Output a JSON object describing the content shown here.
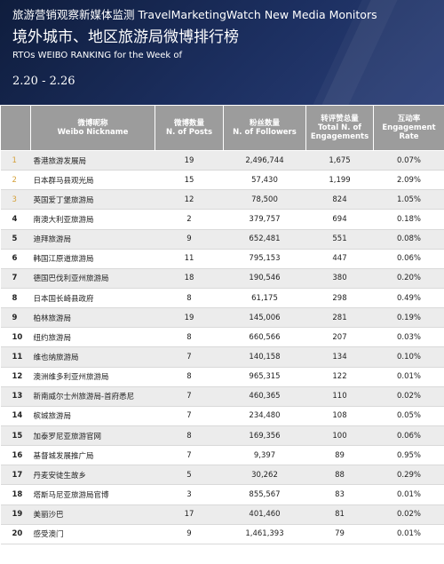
{
  "header": {
    "top_line": "旅游营销观察新媒体监测 TravelMarketingWatch New Media Monitors",
    "title": "境外城市、地区旅游局微博排行榜",
    "subtitle": "RTOs WEIBO RANKING for the Week of",
    "date": "2.20 - 2.26"
  },
  "table": {
    "columns": [
      {
        "cn": "微博昵称",
        "en": "Weibo Nickname"
      },
      {
        "cn": "微博数量",
        "en": "N. of Posts"
      },
      {
        "cn": "粉丝数量",
        "en": "N. of Followers"
      },
      {
        "cn": "转评赞总量",
        "en": "Total N. of Engagements"
      },
      {
        "cn": "互动率",
        "en": "Engagement Rate"
      }
    ],
    "rows": [
      {
        "rank": "1",
        "name": "香港旅游发展局",
        "posts": "19",
        "followers": "2,496,744",
        "engagements": "1,675",
        "rate": "0.07%"
      },
      {
        "rank": "2",
        "name": "日本群马县观光局",
        "posts": "15",
        "followers": "57,430",
        "engagements": "1,199",
        "rate": "2.09%"
      },
      {
        "rank": "3",
        "name": "英国爱丁堡旅游局",
        "posts": "12",
        "followers": "78,500",
        "engagements": "824",
        "rate": "1.05%"
      },
      {
        "rank": "4",
        "name": "南澳大利亚旅游局",
        "posts": "2",
        "followers": "379,757",
        "engagements": "694",
        "rate": "0.18%"
      },
      {
        "rank": "5",
        "name": "迪拜旅游局",
        "posts": "9",
        "followers": "652,481",
        "engagements": "551",
        "rate": "0.08%"
      },
      {
        "rank": "6",
        "name": "韩国江原道旅游局",
        "posts": "11",
        "followers": "795,153",
        "engagements": "447",
        "rate": "0.06%"
      },
      {
        "rank": "7",
        "name": "德国巴伐利亚州旅游局",
        "posts": "18",
        "followers": "190,546",
        "engagements": "380",
        "rate": "0.20%"
      },
      {
        "rank": "8",
        "name": "日本国长崎县政府",
        "posts": "8",
        "followers": "61,175",
        "engagements": "298",
        "rate": "0.49%"
      },
      {
        "rank": "9",
        "name": "柏林旅游局",
        "posts": "19",
        "followers": "145,006",
        "engagements": "281",
        "rate": "0.19%"
      },
      {
        "rank": "10",
        "name": "纽约旅游局",
        "posts": "8",
        "followers": "660,566",
        "engagements": "207",
        "rate": "0.03%"
      },
      {
        "rank": "11",
        "name": "维也纳旅游局",
        "posts": "7",
        "followers": "140,158",
        "engagements": "134",
        "rate": "0.10%"
      },
      {
        "rank": "12",
        "name": "澳洲维多利亚州旅游局",
        "posts": "8",
        "followers": "965,315",
        "engagements": "122",
        "rate": "0.01%"
      },
      {
        "rank": "13",
        "name": "新南威尔士州旅游局-首府悉尼",
        "posts": "7",
        "followers": "460,365",
        "engagements": "110",
        "rate": "0.02%"
      },
      {
        "rank": "14",
        "name": "槟城旅游局",
        "posts": "7",
        "followers": "234,480",
        "engagements": "108",
        "rate": "0.05%"
      },
      {
        "rank": "15",
        "name": "加泰罗尼亚旅游官网",
        "posts": "8",
        "followers": "169,356",
        "engagements": "100",
        "rate": "0.06%"
      },
      {
        "rank": "16",
        "name": "基督城发展推广局",
        "posts": "7",
        "followers": "9,397",
        "engagements": "89",
        "rate": "0.95%"
      },
      {
        "rank": "17",
        "name": "丹麦安徒生故乡",
        "posts": "5",
        "followers": "30,262",
        "engagements": "88",
        "rate": "0.29%"
      },
      {
        "rank": "18",
        "name": "塔斯马尼亚旅游局官博",
        "posts": "3",
        "followers": "855,567",
        "engagements": "83",
        "rate": "0.01%"
      },
      {
        "rank": "19",
        "name": "美丽沙巴",
        "posts": "17",
        "followers": "401,460",
        "engagements": "81",
        "rate": "0.02%"
      },
      {
        "rank": "20",
        "name": "感受澳门",
        "posts": "9",
        "followers": "1,461,393",
        "engagements": "79",
        "rate": "0.01%"
      }
    ]
  }
}
